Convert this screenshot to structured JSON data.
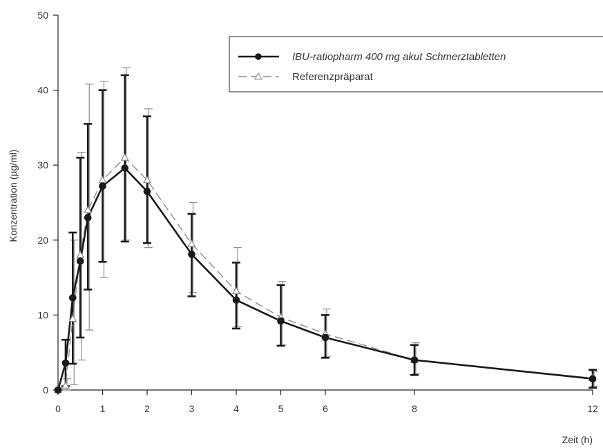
{
  "chart_data": {
    "type": "line",
    "title": "",
    "xlabel": "Zeit (h)",
    "ylabel": "Konzentration (µg/ml)",
    "xlim": [
      0,
      12
    ],
    "ylim": [
      0,
      50
    ],
    "xticks": [
      0,
      1,
      2,
      3,
      4,
      5,
      6,
      8,
      12
    ],
    "yticks": [
      0,
      10,
      20,
      30,
      40,
      50
    ],
    "grid": false,
    "legend_position": "top-right",
    "series": [
      {
        "name": "IBU-ratiopharm 400 mg akut Schmerztabletten",
        "style": "solid-black-filled-circle",
        "color": "#1a1a1a",
        "x": [
          0,
          0.17,
          0.33,
          0.5,
          0.67,
          1,
          1.5,
          2,
          3,
          4,
          5,
          6,
          8,
          12
        ],
        "y": [
          0,
          3.6,
          12.3,
          17.2,
          23.0,
          27.2,
          29.6,
          26.5,
          18.1,
          12.0,
          9.2,
          7.0,
          4.0,
          1.5
        ],
        "error_upper": [
          0,
          6.7,
          21.0,
          31.0,
          35.5,
          40.0,
          42.0,
          36.5,
          23.5,
          17.0,
          14.0,
          10.0,
          6.0,
          2.7
        ],
        "error_lower": [
          0,
          0.5,
          3.5,
          7.0,
          13.4,
          17.1,
          19.8,
          19.6,
          12.5,
          8.2,
          5.9,
          4.3,
          2.0,
          0.3
        ]
      },
      {
        "name": "Referenzpräparat",
        "style": "dashed-gray-open-triangle",
        "color": "#8c8c8c",
        "x": [
          0,
          0.17,
          0.33,
          0.5,
          0.67,
          1,
          1.5,
          2,
          3,
          4,
          5,
          6,
          8,
          12
        ],
        "y": [
          0,
          0.6,
          9.5,
          18.0,
          24.0,
          28.0,
          31.0,
          28.0,
          19.5,
          13.2,
          9.7,
          7.5,
          4.0,
          1.6
        ],
        "error_upper": [
          0,
          1.5,
          20.0,
          31.7,
          40.8,
          41.2,
          43.0,
          37.5,
          25.0,
          19.0,
          14.5,
          10.8,
          6.3,
          2.5
        ],
        "error_lower": [
          0,
          0,
          0.7,
          4.0,
          8.0,
          15.0,
          20.0,
          19.0,
          13.0,
          8.5,
          6.0,
          4.5,
          2.2,
          0.5
        ]
      }
    ]
  }
}
